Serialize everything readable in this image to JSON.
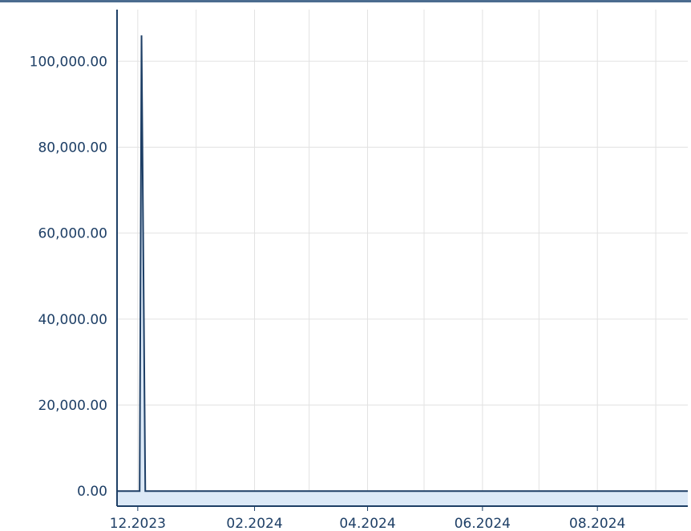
{
  "chart_data": {
    "type": "area",
    "x_axis_type": "date",
    "y_ticks": [
      {
        "value": 0,
        "label": "0.00"
      },
      {
        "value": 20000,
        "label": "20,000.00"
      },
      {
        "value": 40000,
        "label": "40,000.00"
      },
      {
        "value": 60000,
        "label": "60,000.00"
      },
      {
        "value": 80000,
        "label": "80,000.00"
      },
      {
        "value": 100000,
        "label": "100,000.00"
      }
    ],
    "x_ticks": [
      {
        "date": "2023-12-01",
        "label": "12.2023"
      },
      {
        "date": "2024-02-01",
        "label": "02.2024"
      },
      {
        "date": "2024-04-01",
        "label": "04.2024"
      },
      {
        "date": "2024-06-01",
        "label": "06.2024"
      },
      {
        "date": "2024-08-01",
        "label": "08.2024"
      }
    ],
    "xlim": [
      "2023-11-20",
      "2024-09-18"
    ],
    "ylim": [
      -3500,
      112000
    ],
    "grid": true,
    "series": [
      {
        "color": "#1e3f66",
        "fill_color": "#dce9f7",
        "points": [
          {
            "x": "2023-11-20",
            "y": 0
          },
          {
            "x": "2023-12-02",
            "y": 0
          },
          {
            "x": "2023-12-03",
            "y": 106000
          },
          {
            "x": "2023-12-04",
            "y": 53000
          },
          {
            "x": "2023-12-05",
            "y": 0
          },
          {
            "x": "2024-09-18",
            "y": 0
          }
        ]
      }
    ]
  }
}
